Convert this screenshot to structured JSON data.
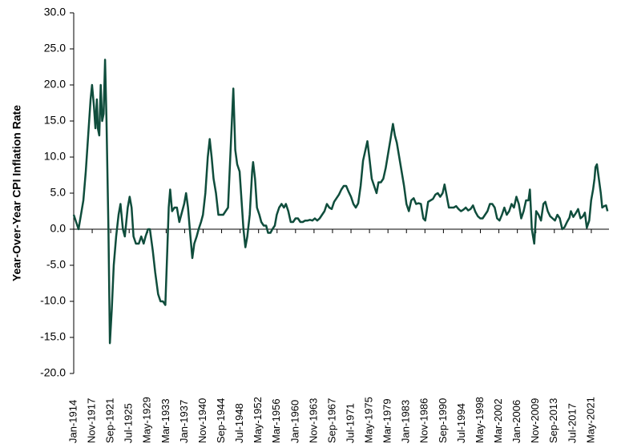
{
  "chart_data": {
    "type": "line",
    "ylabel": "Year-Over-Year CPI Inflation Rate",
    "x": [
      1914,
      1914.5,
      1915,
      1915.5,
      1916,
      1916.5,
      1917,
      1917.5,
      1917.8,
      1918.2,
      1918.5,
      1918.8,
      1919,
      1919.3,
      1919.6,
      1919.9,
      1920.2,
      1920.5,
      1920.8,
      1921.2,
      1921.5,
      1921.9,
      1922.3,
      1922.8,
      1923.3,
      1923.7,
      1924.2,
      1924.6,
      1925.2,
      1925.6,
      1926,
      1926.4,
      1926.9,
      1927.5,
      1928,
      1928.5,
      1928.9,
      1929.4,
      1929.8,
      1930.4,
      1930.9,
      1931.5,
      1932,
      1932.5,
      1933,
      1933.4,
      1933.7,
      1934,
      1934.4,
      1934.9,
      1935.4,
      1935.9,
      1936.3,
      1936.9,
      1937.3,
      1937.7,
      1938.2,
      1938.6,
      1939,
      1939.5,
      1939.9,
      1940.4,
      1940.8,
      1941.3,
      1941.8,
      1942.2,
      1942.6,
      1943,
      1943.5,
      1944,
      1944.5,
      1945,
      1945.5,
      1946,
      1946.4,
      1946.8,
      1947.1,
      1947.5,
      1947.9,
      1948.4,
      1948.8,
      1949.2,
      1949.6,
      1950,
      1950.5,
      1951,
      1951.2,
      1951.6,
      1952,
      1952.5,
      1952.9,
      1953.4,
      1953.9,
      1954.3,
      1954.8,
      1955.2,
      1955.7,
      1956.1,
      1956.6,
      1957.1,
      1957.6,
      1958,
      1958.5,
      1959,
      1959.5,
      1960,
      1960.5,
      1961,
      1961.5,
      1962,
      1962.5,
      1963,
      1963.5,
      1964,
      1964.5,
      1965,
      1965.5,
      1966,
      1966.5,
      1967,
      1967.5,
      1968,
      1968.5,
      1969,
      1969.5,
      1970,
      1970.5,
      1971,
      1971.5,
      1972,
      1972.5,
      1973,
      1973.5,
      1974,
      1974.5,
      1974.9,
      1975.3,
      1975.8,
      1976.3,
      1976.8,
      1977.2,
      1977.7,
      1978.2,
      1978.7,
      1979.2,
      1979.7,
      1980.2,
      1980.6,
      1981,
      1981.5,
      1982,
      1982.5,
      1983,
      1983.5,
      1984,
      1984.5,
      1985,
      1985.5,
      1986,
      1986.5,
      1986.9,
      1987.5,
      1988,
      1988.5,
      1989,
      1989.5,
      1990,
      1990.5,
      1990.9,
      1991.3,
      1991.8,
      1992.3,
      1992.8,
      1993.3,
      1993.8,
      1994.3,
      1994.8,
      1995.3,
      1995.8,
      1996.3,
      1996.8,
      1997.3,
      1997.8,
      1998.3,
      1998.8,
      1999.3,
      1999.8,
      2000.3,
      2000.8,
      2001.3,
      2001.8,
      2002.3,
      2002.8,
      2003.3,
      2003.8,
      2004.3,
      2004.8,
      2005.3,
      2005.8,
      2006.3,
      2006.8,
      2007.3,
      2007.8,
      2008.3,
      2008.6,
      2009,
      2009.5,
      2009.9,
      2010.4,
      2010.9,
      2011.4,
      2011.8,
      2012.3,
      2012.8,
      2013.3,
      2013.8,
      2014.3,
      2014.8,
      2015.3,
      2015.8,
      2016.3,
      2016.8,
      2017.1,
      2017.6,
      2018.1,
      2018.6,
      2019.1,
      2019.6,
      2020,
      2020.4,
      2020.9,
      2021.3,
      2021.7,
      2022,
      2022.2,
      2022.5,
      2022.9,
      2023.3,
      2023.6,
      2024,
      2024.4,
      2024.7
    ],
    "series": [
      {
        "color": "#0f4d3c",
        "values": [
          2,
          1,
          0,
          2,
          4,
          8,
          13,
          18,
          20,
          17,
          14,
          18,
          14,
          13,
          20,
          15,
          16,
          23.5,
          15,
          0,
          -15.8,
          -11,
          -5,
          -1,
          2,
          3.5,
          0,
          -1,
          3,
          4.5,
          3,
          -1,
          -2,
          -2,
          -1,
          -2,
          -1,
          0,
          0,
          -3,
          -6,
          -9,
          -10,
          -10,
          -10.5,
          -3,
          3,
          5.5,
          2.5,
          3,
          3,
          1,
          2,
          3.5,
          5,
          3,
          -1,
          -4,
          -2,
          -1,
          0,
          1,
          2,
          5,
          10,
          12.5,
          10,
          7,
          5,
          2,
          2,
          2,
          2.5,
          3,
          9,
          15,
          19.5,
          11,
          9,
          8,
          4,
          0,
          -2.5,
          -1,
          2,
          8,
          9.3,
          7,
          3,
          2,
          1,
          0.5,
          0.5,
          -0.5,
          -0.5,
          0,
          0.5,
          2,
          3,
          3.5,
          3,
          3.5,
          2.5,
          1,
          1,
          1.5,
          1.5,
          1,
          1,
          1.2,
          1.2,
          1.3,
          1.2,
          1.5,
          1.2,
          1.5,
          2,
          2.5,
          3.5,
          3,
          2.8,
          3.8,
          4.3,
          4.8,
          5.5,
          6,
          6,
          5.2,
          4.5,
          3.5,
          3,
          3.6,
          6,
          9.5,
          11,
          12.2,
          10,
          7,
          6,
          5,
          6.5,
          6.5,
          7,
          8.5,
          10.5,
          12.5,
          14.6,
          13,
          12,
          10,
          8,
          6,
          3.5,
          2.5,
          4,
          4.3,
          3.5,
          3.6,
          3.5,
          1.5,
          1.2,
          3.8,
          4,
          4.2,
          4.8,
          5,
          4.5,
          5,
          6.2,
          4.8,
          3,
          3,
          3,
          3.2,
          2.8,
          2.5,
          2.7,
          3,
          2.6,
          2.8,
          3.3,
          2.4,
          1.8,
          1.5,
          1.5,
          2,
          2.5,
          3.5,
          3.5,
          3,
          1.5,
          1.2,
          2,
          3,
          2,
          2.5,
          3.5,
          3,
          4.5,
          3.5,
          1.5,
          2.5,
          4,
          4,
          5.5,
          0,
          -2,
          2.5,
          2,
          1.2,
          3.5,
          3.8,
          2.5,
          1.8,
          1.5,
          1.2,
          2,
          1.5,
          0,
          0.3,
          1,
          1.6,
          2.5,
          1.7,
          2.2,
          2.8,
          1.5,
          1.8,
          2.3,
          0.2,
          1.2,
          4,
          5.5,
          7,
          8.6,
          9,
          7,
          5,
          3,
          3.2,
          3.3,
          2.5
        ]
      }
    ],
    "xlim": [
      1914,
      2025
    ],
    "xticks": [
      {
        "value": 1914,
        "label": "Jan-1914"
      },
      {
        "value": 1917.833,
        "label": "Nov-1917"
      },
      {
        "value": 1921.667,
        "label": "Sep-1921"
      },
      {
        "value": 1925.5,
        "label": "Jul-1925"
      },
      {
        "value": 1929.333,
        "label": "May-1929"
      },
      {
        "value": 1933.167,
        "label": "Mar-1933"
      },
      {
        "value": 1937,
        "label": "Jan-1937"
      },
      {
        "value": 1940.833,
        "label": "Nov-1940"
      },
      {
        "value": 1944.667,
        "label": "Sep-1944"
      },
      {
        "value": 1948.5,
        "label": "Jul-1948"
      },
      {
        "value": 1952.333,
        "label": "May-1952"
      },
      {
        "value": 1956.167,
        "label": "Mar-1956"
      },
      {
        "value": 1960,
        "label": "Jan-1960"
      },
      {
        "value": 1963.833,
        "label": "Nov-1963"
      },
      {
        "value": 1967.667,
        "label": "Sep-1967"
      },
      {
        "value": 1971.5,
        "label": "Jul-1971"
      },
      {
        "value": 1975.333,
        "label": "May-1975"
      },
      {
        "value": 1979.167,
        "label": "Mar-1979"
      },
      {
        "value": 1983,
        "label": "Jan-1983"
      },
      {
        "value": 1986.833,
        "label": "Nov-1986"
      },
      {
        "value": 1990.667,
        "label": "Sep-1990"
      },
      {
        "value": 1994.5,
        "label": "Jul-1994"
      },
      {
        "value": 1998.333,
        "label": "May-1998"
      },
      {
        "value": 2002.167,
        "label": "Mar-2002"
      },
      {
        "value": 2006,
        "label": "Jan-2006"
      },
      {
        "value": 2009.833,
        "label": "Nov-2009"
      },
      {
        "value": 2013.667,
        "label": "Sep-2013"
      },
      {
        "value": 2017.5,
        "label": "Jul-2017"
      },
      {
        "value": 2021.333,
        "label": "May-2021"
      }
    ],
    "ylim": [
      -20,
      30
    ],
    "yticks": [
      {
        "value": -20,
        "label": "-20.0"
      },
      {
        "value": -15,
        "label": "-15.0"
      },
      {
        "value": -10,
        "label": "-10.0"
      },
      {
        "value": -5,
        "label": "-5.0"
      },
      {
        "value": 0,
        "label": "0.0"
      },
      {
        "value": 5,
        "label": "5.0"
      },
      {
        "value": 10,
        "label": "10.0"
      },
      {
        "value": 15,
        "label": "15.0"
      },
      {
        "value": 20,
        "label": "20.0"
      },
      {
        "value": 25,
        "label": "25.0"
      },
      {
        "value": 30,
        "label": "30.0"
      }
    ],
    "grid": false
  }
}
